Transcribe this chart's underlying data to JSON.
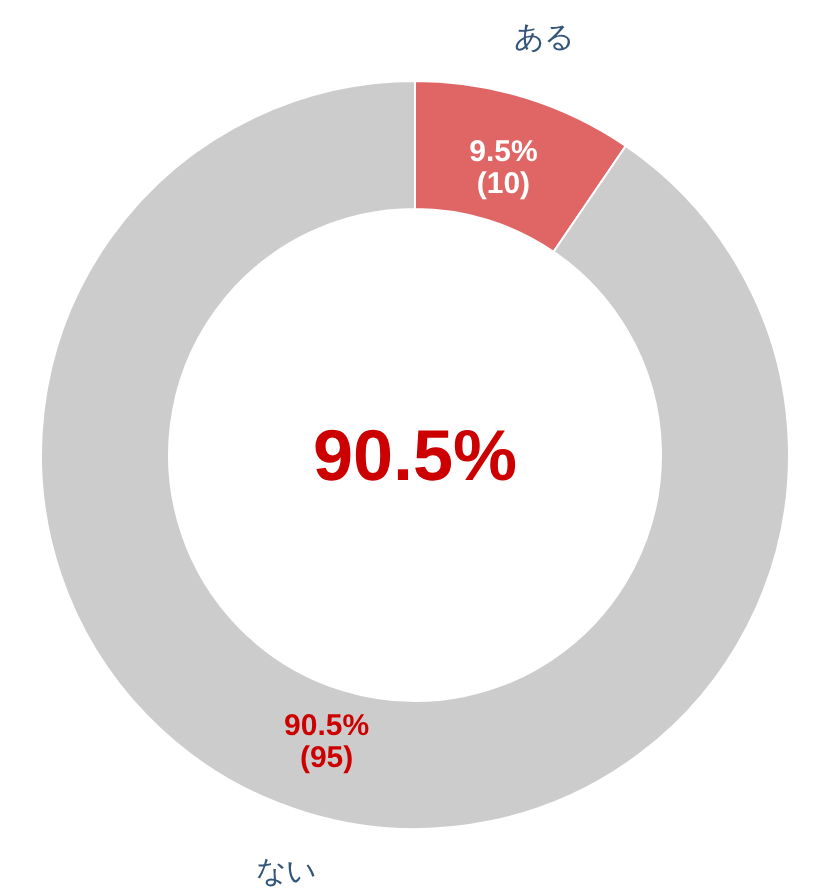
{
  "chart_data": {
    "type": "donut",
    "categories": [
      "ある",
      "ない"
    ],
    "values": [
      10,
      95
    ],
    "colors": [
      "#e06666",
      "#cccccc"
    ],
    "value_labels": [
      "9.5%\n(10)",
      "90.5%\n(95)"
    ],
    "annotations": [
      "90.5%"
    ]
  }
}
